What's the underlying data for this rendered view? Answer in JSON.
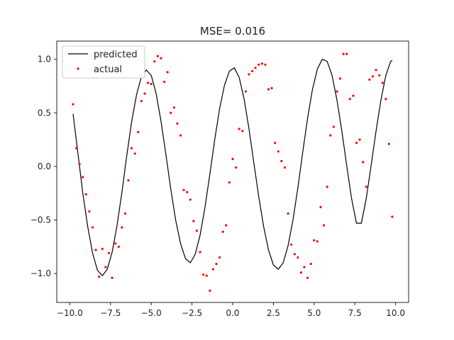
{
  "chart_data": {
    "type": "line",
    "title": "MSE= 0.016",
    "xlabel": "",
    "ylabel": "",
    "xlim": [
      -10.8,
      10.8
    ],
    "ylim": [
      -1.27,
      1.17
    ],
    "xticks": [
      -10.0,
      -7.5,
      -5.0,
      -2.5,
      0.0,
      2.5,
      5.0,
      7.5,
      10.0
    ],
    "xtick_labels": [
      "−10.0",
      "−7.5",
      "−5.0",
      "−2.5",
      "0.0",
      "2.5",
      "5.0",
      "7.5",
      "10.0"
    ],
    "yticks": [
      -1.0,
      -0.5,
      0.0,
      0.5,
      1.0
    ],
    "ytick_labels": [
      "−1.0",
      "−0.5",
      "0.0",
      "0.5",
      "1.0"
    ],
    "grid": false,
    "legend_position": "top-left",
    "series": [
      {
        "name": "predicted",
        "kind": "line",
        "color": "#000000",
        "x": [
          -9.8,
          -9.5,
          -9.2,
          -8.9,
          -8.6,
          -8.3,
          -8.0,
          -7.7,
          -7.4,
          -7.1,
          -6.8,
          -6.5,
          -6.2,
          -5.9,
          -5.6,
          -5.3,
          -5.0,
          -4.7,
          -4.4,
          -4.1,
          -3.8,
          -3.5,
          -3.2,
          -2.9,
          -2.6,
          -2.3,
          -2.0,
          -1.7,
          -1.4,
          -1.1,
          -0.8,
          -0.5,
          -0.2,
          0.1,
          0.4,
          0.7,
          1.0,
          1.3,
          1.6,
          1.9,
          2.2,
          2.5,
          2.8,
          3.1,
          3.4,
          3.7,
          4.0,
          4.3,
          4.6,
          4.9,
          5.2,
          5.5,
          5.8,
          6.1,
          6.4,
          6.7,
          7.0,
          7.3,
          7.6,
          7.9,
          8.2,
          8.5,
          8.8,
          9.1,
          9.4,
          9.7,
          9.8
        ],
        "y": [
          0.49,
          0.12,
          -0.25,
          -0.56,
          -0.81,
          -0.97,
          -1.02,
          -0.96,
          -0.8,
          -0.55,
          -0.24,
          0.1,
          0.42,
          0.67,
          0.84,
          0.9,
          0.85,
          0.68,
          0.42,
          0.11,
          -0.21,
          -0.5,
          -0.72,
          -0.86,
          -0.9,
          -0.82,
          -0.64,
          -0.38,
          -0.07,
          0.25,
          0.54,
          0.76,
          0.89,
          0.92,
          0.83,
          0.63,
          0.35,
          0.03,
          -0.28,
          -0.56,
          -0.78,
          -0.92,
          -0.96,
          -0.9,
          -0.74,
          -0.5,
          -0.2,
          0.13,
          0.45,
          0.72,
          0.91,
          1.0,
          0.98,
          0.85,
          0.62,
          0.33,
          0.01,
          -0.3,
          -0.53,
          -0.53,
          -0.3,
          0.01,
          0.33,
          0.62,
          0.85,
          0.98,
          0.99
        ]
      },
      {
        "name": "actual",
        "kind": "scatter",
        "color": "#ff0000",
        "x": [
          -9.8,
          -9.6,
          -9.4,
          -9.2,
          -9.0,
          -8.8,
          -8.6,
          -8.4,
          -8.2,
          -8.0,
          -7.8,
          -7.6,
          -7.4,
          -7.2,
          -7.0,
          -6.8,
          -6.6,
          -6.4,
          -6.2,
          -6.0,
          -5.8,
          -5.6,
          -5.4,
          -5.2,
          -5.0,
          -4.8,
          -4.6,
          -4.4,
          -4.2,
          -4.0,
          -3.8,
          -3.6,
          -3.4,
          -3.2,
          -3.0,
          -2.8,
          -2.6,
          -2.4,
          -2.2,
          -2.0,
          -1.8,
          -1.6,
          -1.4,
          -1.2,
          -1.0,
          -0.8,
          -0.6,
          -0.4,
          -0.2,
          0.0,
          0.2,
          0.4,
          0.6,
          0.8,
          1.0,
          1.2,
          1.4,
          1.6,
          1.8,
          2.0,
          2.2,
          2.4,
          2.6,
          2.8,
          3.0,
          3.2,
          3.4,
          3.6,
          3.8,
          4.0,
          4.2,
          4.4,
          4.6,
          4.8,
          5.0,
          5.2,
          5.4,
          5.6,
          5.8,
          6.0,
          6.2,
          6.4,
          6.6,
          6.8,
          7.0,
          7.2,
          7.4,
          7.6,
          7.8,
          8.0,
          8.2,
          8.4,
          8.6,
          8.8,
          9.0,
          9.2,
          9.4,
          9.6,
          9.8
        ],
        "y": [
          0.58,
          0.17,
          0.02,
          -0.1,
          -0.26,
          -0.42,
          -0.57,
          -0.78,
          -1.03,
          -0.77,
          -0.94,
          -0.81,
          -1.04,
          -0.72,
          -0.75,
          -0.57,
          -0.44,
          -0.13,
          0.17,
          0.12,
          0.32,
          0.61,
          0.68,
          0.78,
          0.77,
          0.98,
          1.03,
          1.01,
          0.79,
          0.88,
          0.5,
          0.55,
          0.4,
          0.29,
          -0.22,
          -0.24,
          -0.31,
          -0.51,
          -0.6,
          -0.8,
          -1.01,
          -1.02,
          -1.16,
          -0.96,
          -0.91,
          -0.85,
          -0.61,
          -0.55,
          -0.15,
          0.07,
          -0.01,
          0.35,
          0.33,
          0.7,
          0.86,
          0.89,
          0.92,
          0.95,
          0.96,
          0.95,
          0.72,
          0.73,
          0.22,
          0.14,
          0.05,
          -0.01,
          -0.44,
          -0.73,
          -0.82,
          -0.85,
          -0.99,
          -0.94,
          -1.04,
          -0.91,
          -0.69,
          -0.7,
          -0.38,
          -0.55,
          -0.19,
          0.29,
          0.37,
          0.7,
          0.82,
          1.05,
          1.05,
          0.63,
          0.66,
          0.22,
          0.25,
          0.04,
          -0.19,
          0.81,
          0.84,
          0.9,
          0.85,
          0.78,
          0.63,
          0.21,
          -0.47
        ]
      }
    ]
  },
  "legend": {
    "predicted_label": "predicted",
    "actual_label": "actual"
  },
  "colors": {
    "axes_edge": "#222222",
    "predicted_line": "#000000",
    "actual_marker": "#ff0000"
  }
}
